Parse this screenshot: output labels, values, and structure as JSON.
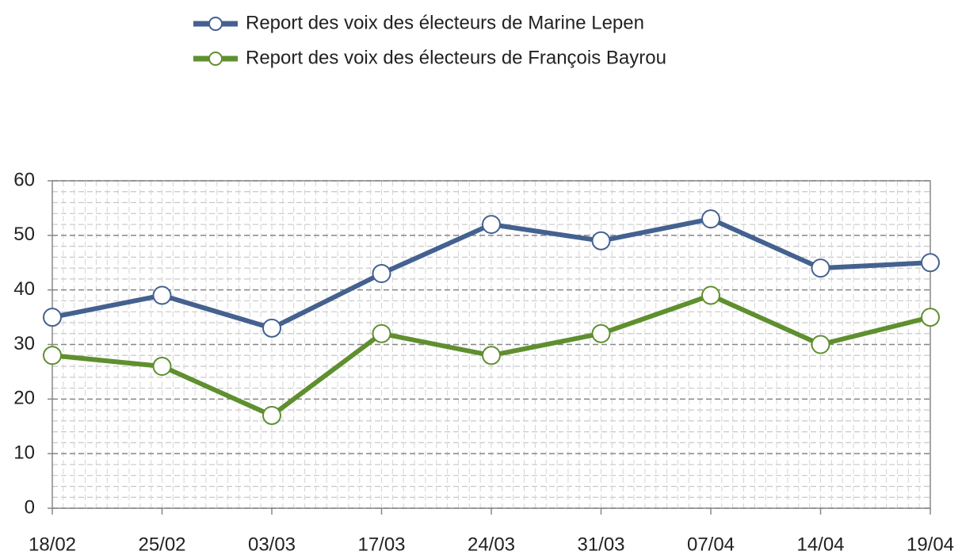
{
  "chart_data": {
    "type": "line",
    "categories": [
      "18/02",
      "25/02",
      "03/03",
      "17/03",
      "24/03",
      "31/03",
      "07/04",
      "14/04",
      "19/04"
    ],
    "series": [
      {
        "name": "Report des voix des électeurs de Marine Lepen",
        "color": "#44618f",
        "values": [
          35,
          39,
          33,
          43,
          52,
          49,
          53,
          44,
          45
        ]
      },
      {
        "name": "Report des voix des électeurs de François Bayrou",
        "color": "#5f8f2f",
        "values": [
          28,
          26,
          17,
          32,
          28,
          32,
          39,
          30,
          35
        ]
      }
    ],
    "ylim": [
      0,
      60
    ],
    "yticks": [
      0,
      10,
      20,
      30,
      40,
      50,
      60
    ],
    "grid": true,
    "legend": "top"
  }
}
